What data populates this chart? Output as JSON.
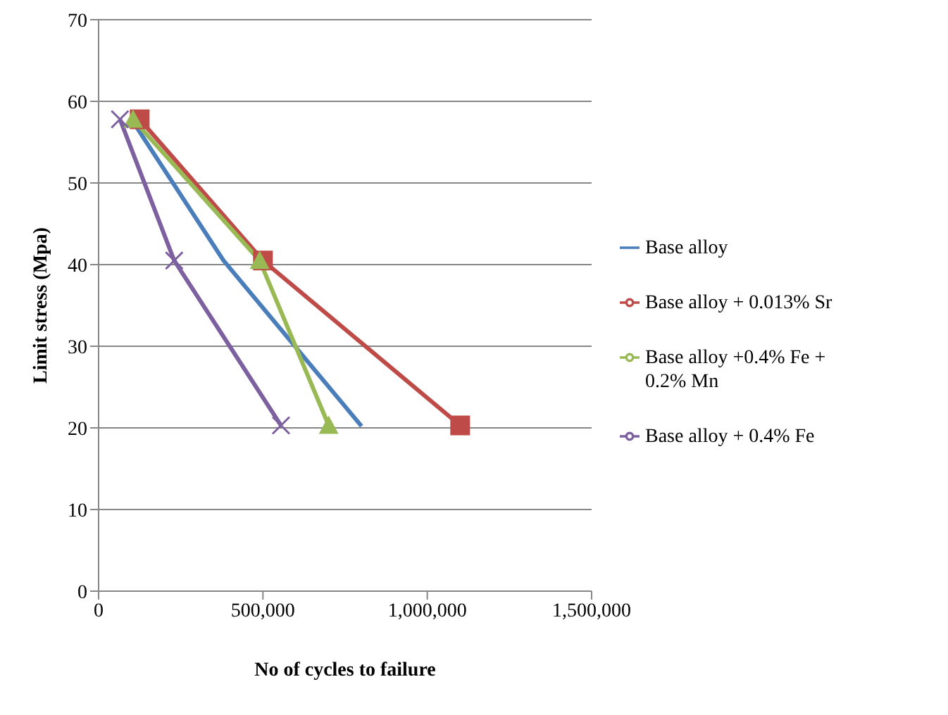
{
  "chart_data": {
    "type": "line",
    "xlabel": "No of cycles to failure",
    "ylabel": "Limit stress (Mpa)",
    "xlim": [
      0,
      1500000
    ],
    "xticks": [
      {
        "value": 0,
        "label": "0"
      },
      {
        "value": 500000,
        "label": "500,000"
      },
      {
        "value": 1000000,
        "label": "1,000,000"
      },
      {
        "value": 1500000,
        "label": "1,500,000"
      }
    ],
    "ylim": [
      0,
      70
    ],
    "yticks": [
      0,
      10,
      20,
      30,
      40,
      50,
      60,
      70
    ],
    "grid": "y",
    "legend": "right",
    "series": [
      {
        "name": "Base alloy",
        "color": "#4a7ebb",
        "marker": "none",
        "x": [
          100000,
          380000,
          800000
        ],
        "values": [
          57.8,
          40.5,
          20.2
        ]
      },
      {
        "name": "Base alloy + 0.013% Sr",
        "color": "#be4b48",
        "marker": "square",
        "x": [
          125000,
          500000,
          1100000
        ],
        "values": [
          57.8,
          40.5,
          20.3
        ]
      },
      {
        "name": "Base alloy +0.4% Fe + 0.2% Mn",
        "color": "#98b954",
        "marker": "triangle",
        "x": [
          105000,
          490000,
          700000
        ],
        "values": [
          57.8,
          40.5,
          20.3
        ]
      },
      {
        "name": "Base alloy + 0.4% Fe",
        "color": "#7d60a0",
        "marker": "cross",
        "x": [
          65000,
          230000,
          555000
        ],
        "values": [
          57.8,
          40.5,
          20.3
        ]
      }
    ]
  }
}
